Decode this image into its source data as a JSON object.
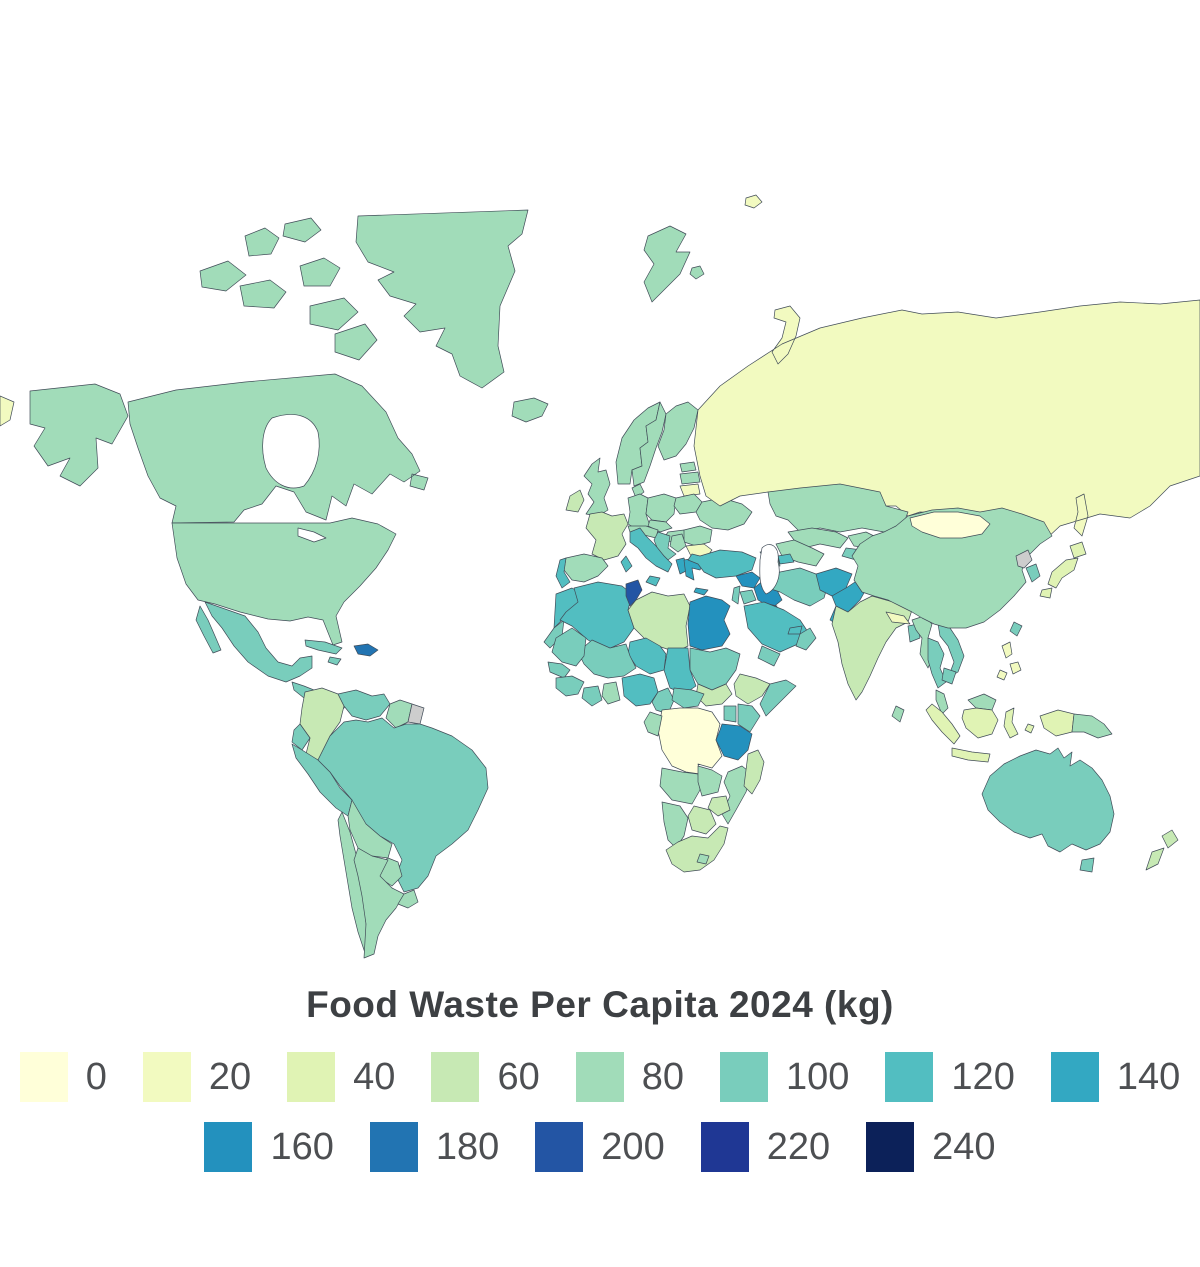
{
  "chart_data": {
    "type": "choropleth",
    "title": "Food Waste Per Capita 2024 (kg)",
    "unit": "kg per capita",
    "year": "2024",
    "projection": "equirectangular-world",
    "legend": {
      "bin_size": 20,
      "bins": [
        0,
        20,
        40,
        60,
        80,
        100,
        120,
        140,
        160,
        180,
        200,
        220,
        240
      ],
      "colors": [
        "#ffffd9",
        "#f2fac0",
        "#e0f3b4",
        "#c7e9b4",
        "#a1dcb9",
        "#79cdbc",
        "#52bec1",
        "#33a8c2",
        "#2391be",
        "#2274b2",
        "#2355a4",
        "#1f3794",
        "#0c2159"
      ],
      "no_data_color": "#cdcdcd",
      "row1_bins": 8,
      "row2_bins": 5
    },
    "regions": {
      "canada": 85,
      "usa": 85,
      "greenland": 88,
      "mexico": 108,
      "central_america": 105,
      "cuba": 104,
      "jamaica": 100,
      "dominican_republic": 185,
      "colombia": 70,
      "venezuela": 105,
      "guyana": 95,
      "french_guiana": null,
      "ecuador": 100,
      "peru": 105,
      "brazil": 102,
      "bolivia": 90,
      "paraguay": 95,
      "chile": 95,
      "argentina": 92,
      "uruguay": 95,
      "iceland": 90,
      "ireland": 72,
      "united_kingdom": 85,
      "portugal": 124,
      "spain": 85,
      "france": 75,
      "germany": 82,
      "denmark": 85,
      "norway": 82,
      "sweden": 82,
      "finland": 90,
      "estonia": 88,
      "latvia": 85,
      "lithuania": 26,
      "poland": 92,
      "belarus": 88,
      "ukraine": 88,
      "czechia": 80,
      "austria_switzerland": 80,
      "hungary": 90,
      "romania": 88,
      "bulgaria": 35,
      "serbia": 90,
      "croatia_bosnia": 112,
      "albania": 146,
      "greece": 145,
      "italy": 124,
      "russia": 28,
      "georgia": 92,
      "armenia": 90,
      "azerbaijan": 122,
      "turkey": 125,
      "syria": 165,
      "iraq": 160,
      "jordan": 112,
      "israel": 108,
      "kuwait": 185,
      "saudi_arabia": 125,
      "uae_qatar": 120,
      "oman": 105,
      "yemen": 105,
      "iran": 105,
      "kazakhstan": 92,
      "uzbekistan": 95,
      "turkmenistan": 95,
      "kyrgyzstan": 95,
      "tajikistan": 100,
      "afghanistan": 146,
      "pakistan": 142,
      "india": 68,
      "nepal": 26,
      "bangladesh": 112,
      "sri_lanka": 92,
      "myanmar": 88,
      "thailand": 105,
      "vietnam": 105,
      "cambodia": 115,
      "malaysia": 90,
      "indonesia": 52,
      "philippines": 28,
      "china": 85,
      "mongolia": 16,
      "north_korea": null,
      "south_korea": 112,
      "japan": 50,
      "taiwan": 105,
      "papua_new_guinea": 85,
      "australia": 102,
      "new_zealand": 64,
      "morocco": 128,
      "western_sahara": 105,
      "algeria": 125,
      "tunisia": 208,
      "libya": 62,
      "egypt": 165,
      "sudan": 105,
      "south_sudan": 65,
      "chad": 122,
      "niger": 122,
      "mali": 105,
      "mauritania": 105,
      "senegal": 110,
      "guinea": 100,
      "cote_divoire": 105,
      "ghana": 85,
      "nigeria": 130,
      "cameroon": 105,
      "central_african_republic": 100,
      "ethiopia": 65,
      "somalia": 100,
      "kenya": 105,
      "uganda": 110,
      "dr_congo": 10,
      "gabon_congo": 88,
      "tanzania": 162,
      "angola": 88,
      "zambia": 82,
      "mozambique": 92,
      "zimbabwe": 68,
      "botswana": 68,
      "namibia": 85,
      "south_africa": 68,
      "lesotho": 80,
      "madagascar": 72,
      "svalbard": 82
    }
  }
}
